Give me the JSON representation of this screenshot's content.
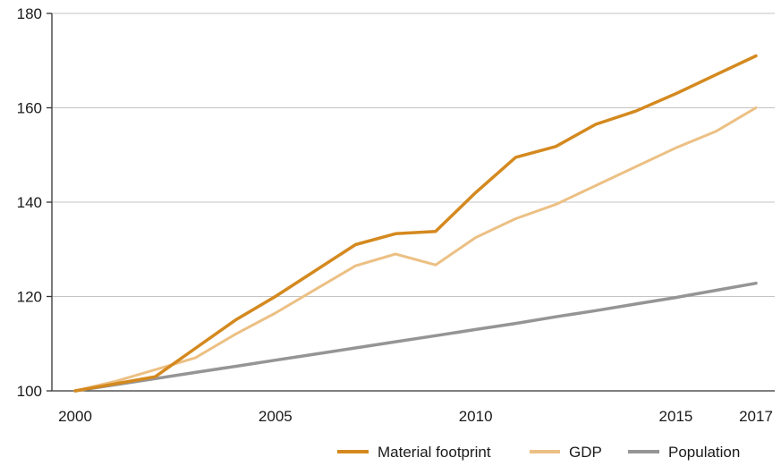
{
  "chart_data": {
    "type": "line",
    "title": "",
    "xlabel": "",
    "ylabel": "",
    "x": [
      2000,
      2001,
      2002,
      2003,
      2004,
      2005,
      2006,
      2007,
      2008,
      2009,
      2010,
      2011,
      2012,
      2013,
      2014,
      2015,
      2016,
      2017
    ],
    "xlim": [
      2000,
      2017
    ],
    "ylim": [
      100,
      180
    ],
    "x_ticks": [
      2000,
      2005,
      2010,
      2015,
      2017
    ],
    "x_tick_labels": [
      "2000",
      "2005",
      "2010",
      "2015",
      "2017"
    ],
    "y_ticks": [
      100,
      120,
      140,
      160,
      180
    ],
    "y_tick_labels": [
      "100",
      "120",
      "140",
      "160",
      "180"
    ],
    "grid": "horizontal",
    "legend_position": "bottom-right",
    "series": [
      {
        "name": "Material footprint",
        "color": "#d4891f",
        "values": [
          100,
          101.5,
          103,
          109,
          115,
          120,
          125.5,
          131,
          133.3,
          133.8,
          142,
          149.5,
          151.8,
          156.5,
          159.3,
          163,
          167,
          171
        ]
      },
      {
        "name": "GDP",
        "color": "#ecc084",
        "values": [
          100,
          102,
          104.5,
          107,
          112,
          116.5,
          121.5,
          126.5,
          129,
          126.7,
          132.5,
          136.5,
          139.5,
          143.5,
          147.5,
          151.5,
          155,
          160
        ]
      },
      {
        "name": "Population",
        "color": "#959595",
        "values": [
          100,
          101.3,
          102.6,
          103.9,
          105.2,
          106.5,
          107.8,
          109.1,
          110.4,
          111.7,
          113,
          114.3,
          115.7,
          117,
          118.4,
          119.8,
          121.3,
          122.8
        ]
      }
    ]
  }
}
